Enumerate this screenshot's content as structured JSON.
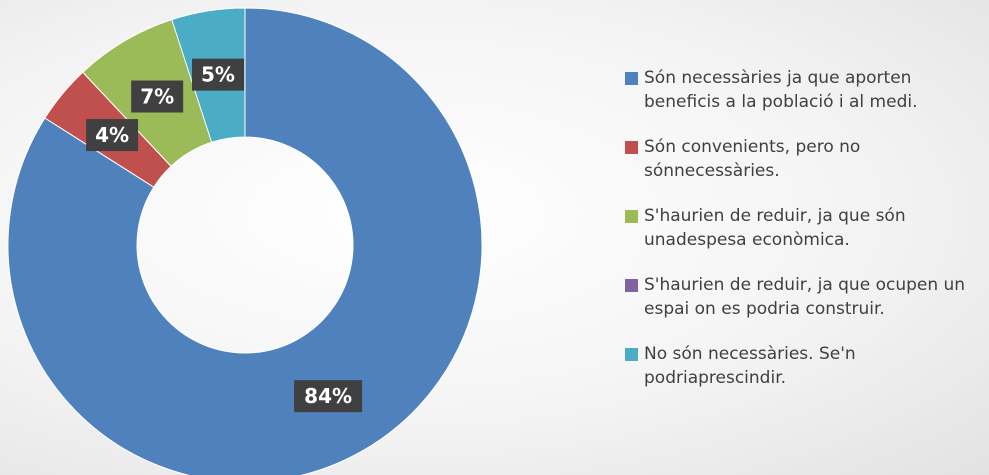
{
  "chart_data": {
    "type": "donut",
    "categories": [
      "Són necessàries ja que aporten beneficis a la població i al medi.",
      "Són convenients, pero no sónnecessàries.",
      "S'haurien de reduir, ja que són unadespesa econòmica.",
      "S'haurien de reduir, ja que ocupen un espai on es podria construir.",
      "No són necessàries. Se'n podriaprescindir."
    ],
    "values": [
      84,
      4,
      7,
      0,
      5
    ],
    "value_labels": [
      "84%",
      "4%",
      "7%",
      null,
      "5%"
    ],
    "colors": [
      "#4f81bd",
      "#c0504d",
      "#9bbb59",
      "#8064a2",
      "#4bacc6"
    ],
    "legend": "right"
  }
}
